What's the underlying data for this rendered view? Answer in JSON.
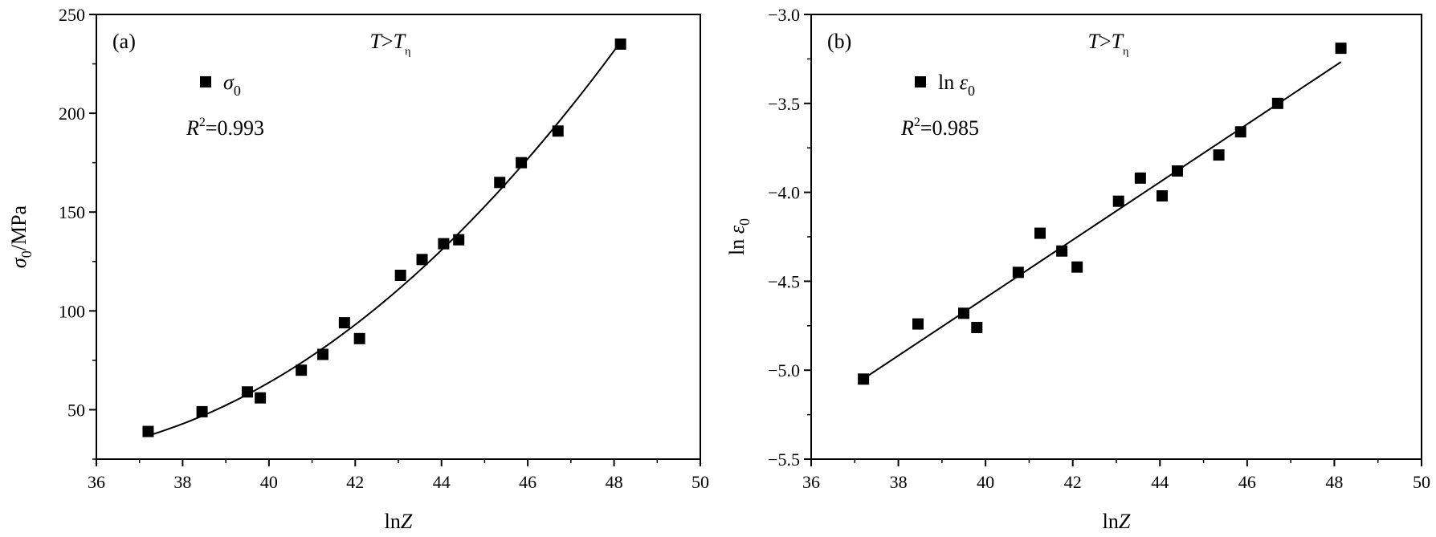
{
  "chart_data": [
    {
      "type": "scatter",
      "panel_label": "(a)",
      "condition": {
        "main": "T",
        "op": ">",
        "sub_base": "T",
        "sub": "η"
      },
      "xlabel": {
        "prefix": "ln",
        "var": "Z"
      },
      "ylabel": {
        "symbol": "σ",
        "sub": "0",
        "unit": "/MPa"
      },
      "xlim": [
        36,
        50
      ],
      "ylim": [
        25,
        250
      ],
      "xticks": [
        36,
        38,
        40,
        42,
        44,
        46,
        48,
        50
      ],
      "yticks": [
        50,
        100,
        150,
        200,
        250
      ],
      "legend": {
        "symbol": "σ",
        "sub": "0",
        "position": "top-left"
      },
      "r2": {
        "label": "R",
        "sup": "2",
        "value": "=0.993"
      },
      "series": [
        {
          "x": [
            37.2,
            38.45,
            39.5,
            39.8,
            40.75,
            41.25,
            41.75,
            42.1,
            43.05,
            43.55,
            44.05,
            44.4,
            45.35,
            45.85,
            46.7,
            48.15
          ],
          "y": [
            39,
            49,
            59,
            56,
            70,
            78,
            94,
            86,
            118,
            126,
            134,
            136,
            165,
            175,
            191,
            235
          ]
        }
      ],
      "fit": {
        "type": "quadratic",
        "x_range": [
          37.2,
          48.15
        ]
      },
      "grid": false,
      "marker_color": "#000000"
    },
    {
      "type": "scatter",
      "panel_label": "(b)",
      "condition": {
        "main": "T",
        "op": ">",
        "sub_base": "T",
        "sub": "η"
      },
      "xlabel": {
        "prefix": "ln",
        "var": "Z"
      },
      "ylabel": {
        "prefix": "ln",
        "symbol": "ε",
        "sub": "0"
      },
      "xlim": [
        36,
        50
      ],
      "ylim": [
        -5.5,
        -3.0
      ],
      "xticks": [
        36,
        38,
        40,
        42,
        44,
        46,
        48,
        50
      ],
      "yticks": [
        -5.5,
        -5.0,
        -4.5,
        -4.0,
        -3.5,
        -3.0
      ],
      "ytick_labels": [
        "−5.5",
        "−5.0",
        "−4.5",
        "−4.0",
        "−3.5",
        "−3.0"
      ],
      "legend": {
        "prefix": "ln",
        "symbol": "ε",
        "sub": "0",
        "position": "top-left"
      },
      "r2": {
        "label": "R",
        "sup": "2",
        "value": "=0.985"
      },
      "series": [
        {
          "x": [
            37.2,
            38.45,
            39.5,
            39.8,
            40.75,
            41.25,
            41.75,
            42.1,
            43.05,
            43.55,
            44.05,
            44.4,
            45.35,
            45.85,
            46.7,
            48.15
          ],
          "y": [
            -5.05,
            -4.74,
            -4.68,
            -4.76,
            -4.45,
            -4.23,
            -4.33,
            -4.42,
            -4.05,
            -3.92,
            -4.02,
            -3.88,
            -3.79,
            -3.66,
            -3.5,
            -3.19
          ]
        }
      ],
      "fit": {
        "type": "linear",
        "x_range": [
          37.2,
          48.15
        ]
      },
      "grid": false,
      "marker_color": "#000000"
    }
  ]
}
